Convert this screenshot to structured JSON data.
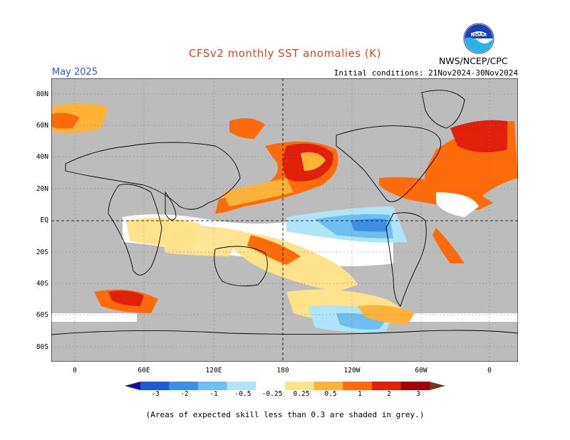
{
  "header": {
    "title": "CFSv2 monthly SST anomalies (K)",
    "month": "May 2025",
    "initial_conditions": "Initial conditions: 21Nov2024-30Nov2024",
    "agency": "NWS/NCEP/CPC",
    "logo_text": "NOAA"
  },
  "map": {
    "lat_labels": [
      "80N",
      "60N",
      "40N",
      "20N",
      "EQ",
      "20S",
      "40S",
      "60S",
      "80S"
    ],
    "lon_labels": [
      "0",
      "60E",
      "120E",
      "180",
      "120W",
      "60W",
      "0"
    ]
  },
  "colorbar": {
    "labels": [
      "-3",
      "-2",
      "-1",
      "-0.5",
      "-0.25",
      "0.25",
      "0.5",
      "1",
      "2",
      "3"
    ],
    "colors": [
      "#1b0a9c",
      "#1e5ad2",
      "#3c8ee6",
      "#6fbef2",
      "#b0e4f8",
      "#ffffff",
      "#ffe28a",
      "#ffb238",
      "#ff6a0a",
      "#e0200a",
      "#a3000a",
      "#6e3a28"
    ]
  },
  "footer": {
    "note": "(Areas of expected skill less than 0.3 are shaded in grey.)"
  }
}
